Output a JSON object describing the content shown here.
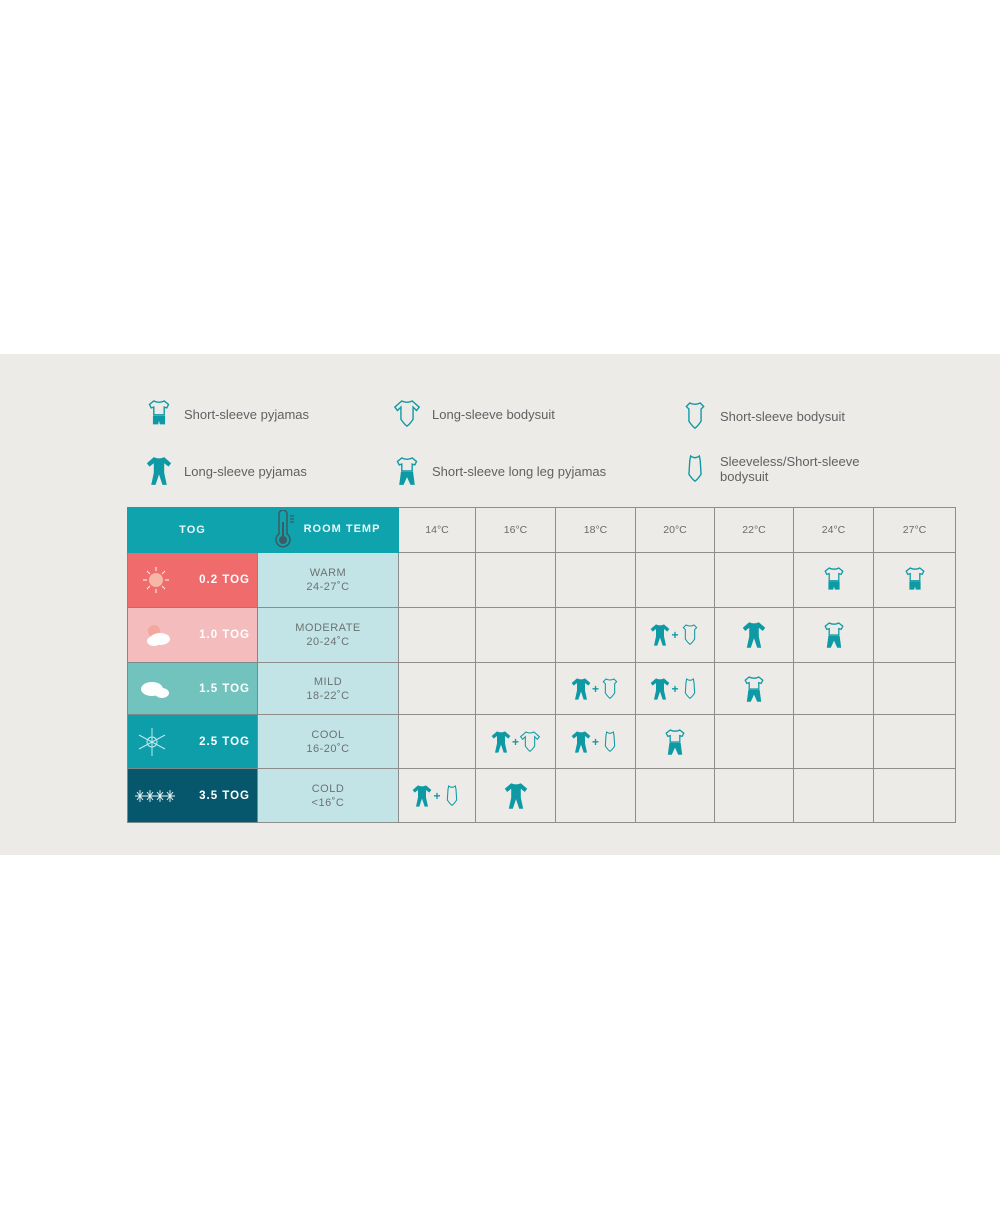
{
  "colors": {
    "accent": "#0e9aa5",
    "header": "#0ea3ad",
    "background": "#edebe7",
    "room_cell": "#c3e4e6"
  },
  "legend": [
    {
      "icon": "ss-pyjamas",
      "label": "Short-sleeve pyjamas"
    },
    {
      "icon": "ls-bodysuit",
      "label": "Long-sleeve bodysuit"
    },
    {
      "icon": "ss-bodysuit",
      "label": "Short-sleeve bodysuit"
    },
    {
      "icon": "ls-pyjamas",
      "label": "Long-sleeve pyjamas"
    },
    {
      "icon": "ss-longleg-pyjamas",
      "label": "Short-sleeve long leg pyjamas"
    },
    {
      "icon": "sleeveless-bodysuit",
      "label": "Sleeveless/Short-sleeve bodysuit"
    }
  ],
  "table": {
    "tog_header": "TOG",
    "room_header": "ROOM TEMP",
    "temps": [
      "14°C",
      "16°C",
      "18°C",
      "20°C",
      "22°C",
      "24°C",
      "27°C"
    ],
    "rows": [
      {
        "tog": "0.2 TOG",
        "color": "#ef6b6c",
        "weather": "sun-icon",
        "room": "WARM",
        "range": "24-27˚C",
        "cells": [
          [],
          [],
          [],
          [],
          [],
          [
            "ss-pyjamas"
          ],
          [
            "ss-pyjamas"
          ]
        ]
      },
      {
        "tog": "1.0 TOG",
        "color": "#f4bcbd",
        "weather": "sun-cloud-icon",
        "room": "MODERATE",
        "range": "20-24˚C",
        "cells": [
          [],
          [],
          [],
          [
            "ls-pyjamas",
            "ss-bodysuit"
          ],
          [
            "ls-pyjamas"
          ],
          [
            "ss-longleg-pyjamas"
          ],
          []
        ]
      },
      {
        "tog": "1.5 TOG",
        "color": "#72c3bd",
        "weather": "cloud-icon",
        "room": "MILD",
        "range": "18-22˚C",
        "cells": [
          [],
          [],
          [
            "ls-pyjamas",
            "ss-bodysuit"
          ],
          [
            "ls-pyjamas",
            "sleeveless-bodysuit"
          ],
          [
            "ss-longleg-pyjamas"
          ],
          [],
          []
        ]
      },
      {
        "tog": "2.5 TOG",
        "color": "#0e9eaa",
        "weather": "snowflake-icon",
        "room": "COOL",
        "range": "16-20˚C",
        "cells": [
          [],
          [
            "ls-pyjamas",
            "ls-bodysuit"
          ],
          [
            "ls-pyjamas",
            "sleeveless-bodysuit"
          ],
          [
            "ss-longleg-pyjamas"
          ],
          [],
          [],
          []
        ]
      },
      {
        "tog": "3.5 TOG",
        "color": "#06576b",
        "weather": "snowflakes-icon",
        "room": "COLD",
        "range": "<16˚C",
        "cells": [
          [
            "ls-pyjamas",
            "sleeveless-bodysuit"
          ],
          [
            "ls-pyjamas"
          ],
          [],
          [],
          [],
          [],
          []
        ]
      }
    ]
  }
}
